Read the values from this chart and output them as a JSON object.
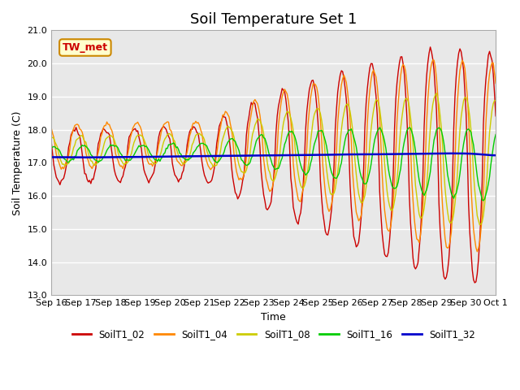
{
  "title": "Soil Temperature Set 1",
  "xlabel": "Time",
  "ylabel": "Soil Temperature (C)",
  "ylim": [
    13.0,
    21.0
  ],
  "yticks": [
    13.0,
    14.0,
    15.0,
    16.0,
    17.0,
    18.0,
    19.0,
    20.0,
    21.0
  ],
  "xtick_labels": [
    "Sep 16",
    "Sep 17",
    "Sep 18",
    "Sep 19",
    "Sep 20",
    "Sep 21",
    "Sep 22",
    "Sep 23",
    "Sep 24",
    "Sep 25",
    "Sep 26",
    "Sep 27",
    "Sep 28",
    "Sep 29",
    "Sep 30",
    "Oct 1"
  ],
  "annotation_text": "TW_met",
  "colors": {
    "SoilT1_02": "#cc0000",
    "SoilT1_04": "#ff8800",
    "SoilT1_08": "#cccc00",
    "SoilT1_16": "#00cc00",
    "SoilT1_32": "#0000cc"
  },
  "background_color": "#e8e8e8",
  "grid_color": "#ffffff",
  "title_fontsize": 13
}
